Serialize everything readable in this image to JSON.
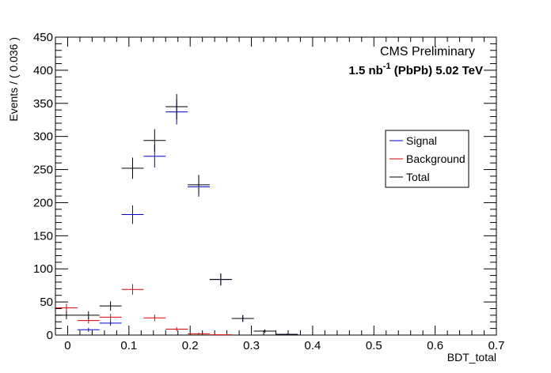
{
  "chart_data": {
    "type": "scatter",
    "header": {
      "experiment": "CMS Preliminary",
      "lumi_value": "1.5 nb",
      "lumi_exponent": "-1",
      "lumi_suffix": " (PbPb) 5.02 TeV"
    },
    "xlabel": "BDT_total",
    "ylabel": "Events / ( 0.036 )",
    "xlim": [
      -0.02,
      0.7
    ],
    "ylim": [
      0,
      450
    ],
    "x_ticks": [
      0,
      0.1,
      0.2,
      0.3,
      0.4,
      0.5,
      0.6,
      0.7
    ],
    "x_tick_labels": [
      "0",
      "0.1",
      "0.2",
      "0.3",
      "0.4",
      "0.5",
      "0.6",
      "0.7"
    ],
    "y_ticks": [
      0,
      50,
      100,
      150,
      200,
      250,
      300,
      350,
      400,
      450
    ],
    "y_tick_labels": [
      "0",
      "50",
      "100",
      "150",
      "200",
      "250",
      "300",
      "350",
      "400",
      "450"
    ],
    "bin_width": 0.036,
    "legend_position": "top-right",
    "series": [
      {
        "name": "Signal",
        "color": "#0000cc",
        "x": [
          0.034,
          0.07,
          0.106,
          0.142,
          0.178,
          0.214,
          0.25,
          0.286,
          0.322,
          0.358,
          0.394,
          0.43,
          0.466,
          0.502,
          0.538,
          0.574
        ],
        "y": [
          8,
          18,
          182,
          270,
          337,
          224,
          84,
          25,
          6,
          1,
          0,
          0,
          0,
          0,
          0,
          0
        ],
        "err": [
          3,
          4,
          14,
          17,
          19,
          15,
          9,
          5,
          2.5,
          1,
          0,
          0,
          0,
          0,
          0,
          0
        ]
      },
      {
        "name": "Background",
        "color": "#dd0000",
        "x": [
          -0.002,
          0.034,
          0.07,
          0.106,
          0.142,
          0.178,
          0.214,
          0.25
        ],
        "y": [
          41,
          22,
          27,
          69,
          26,
          9,
          2,
          0.5
        ],
        "err": [
          6,
          4.5,
          5,
          8,
          5,
          3,
          1.5,
          0.5
        ]
      },
      {
        "name": "Total",
        "color": "#000000",
        "x": [
          -0.002,
          0.034,
          0.07,
          0.106,
          0.142,
          0.178,
          0.214,
          0.25,
          0.286,
          0.322,
          0.358,
          0.394,
          0.43,
          0.466,
          0.502,
          0.538,
          0.574
        ],
        "y": [
          30,
          30,
          44,
          252,
          294,
          345,
          227,
          84,
          25,
          6,
          1,
          0,
          0,
          0,
          0,
          0,
          0
        ],
        "err": [
          6,
          6,
          7,
          16,
          17,
          19,
          15,
          9,
          5,
          2.5,
          1,
          0,
          0,
          0,
          0,
          0,
          0
        ]
      }
    ]
  }
}
